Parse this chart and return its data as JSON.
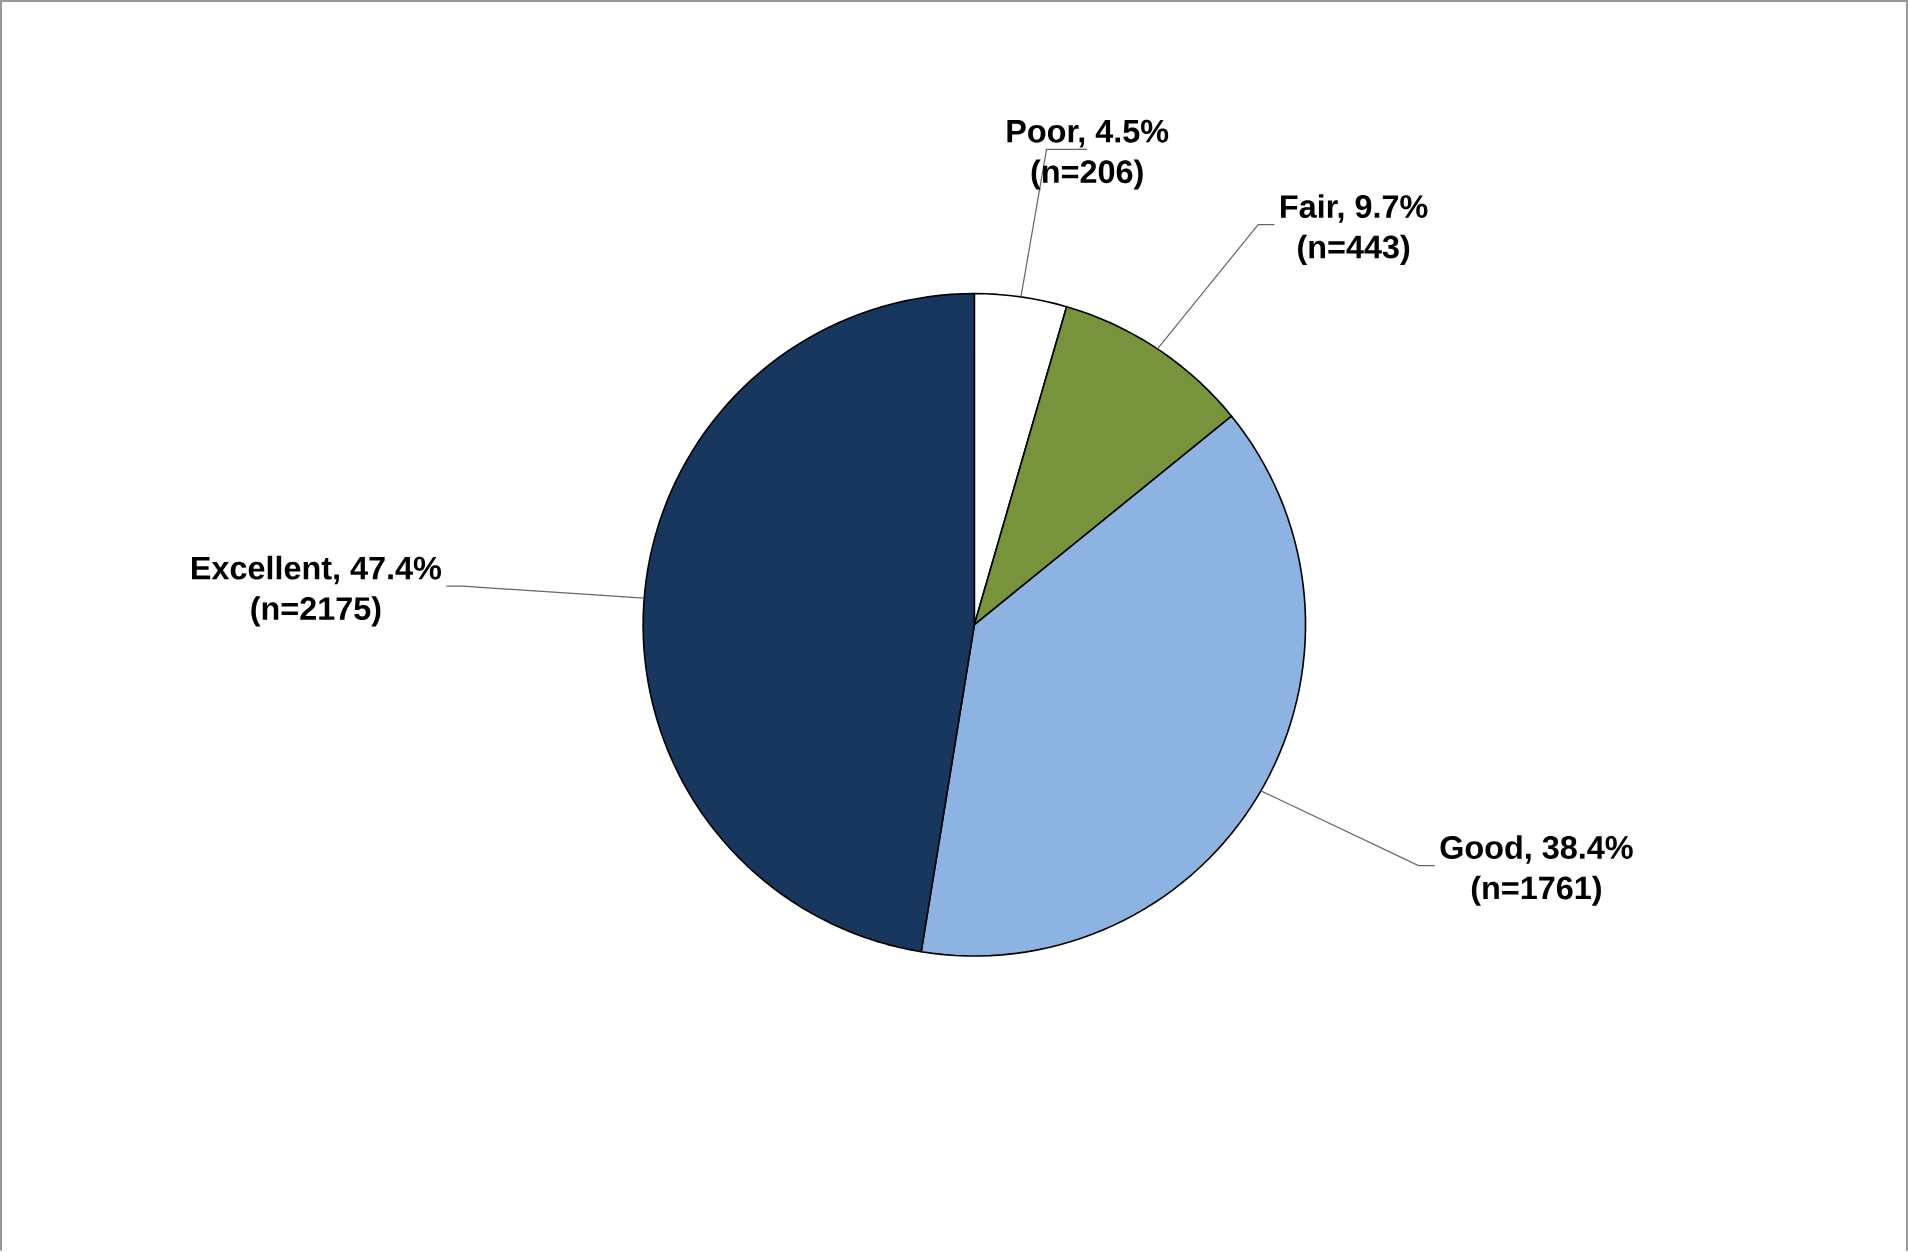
{
  "chart_data": {
    "type": "pie",
    "categories": [
      "Poor, 4.5%",
      "Fair, 9.7%",
      "Good, 38.4%",
      "Excellent, 47.4%"
    ],
    "values": [
      206,
      443,
      1761,
      2175
    ],
    "value_labels": [
      "(n=206)",
      "(n=443)",
      "(n=1761)",
      "(n=2175)"
    ],
    "colors": [
      "#ffffff",
      "#77933c",
      "#8db3e2",
      "#17375e"
    ]
  }
}
